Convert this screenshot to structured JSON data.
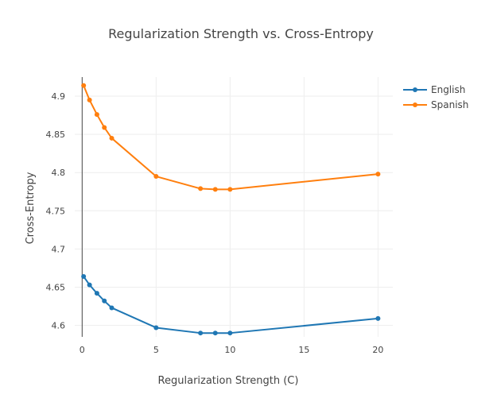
{
  "chart_data": {
    "type": "line",
    "title": "Regularization Strength vs. Cross-Entropy",
    "xlabel": "Regularization Strength (C)",
    "ylabel": "Cross-Entropy",
    "xlim": [
      -0.5,
      21
    ],
    "ylim": [
      4.585,
      4.925
    ],
    "x_ticks": [
      0,
      5,
      10,
      15,
      20
    ],
    "y_ticks": [
      4.6,
      4.65,
      4.7,
      4.75,
      4.8,
      4.85,
      4.9
    ],
    "y_tick_labels": [
      "4.6",
      "4.65",
      "4.7",
      "4.75",
      "4.8",
      "4.85",
      "4.9"
    ],
    "grid": true,
    "legend_position": "top-right",
    "x": [
      0.1,
      0.5,
      1,
      1.5,
      2,
      5,
      8,
      9,
      10,
      20
    ],
    "series": [
      {
        "name": "English",
        "color": "#1f77b4",
        "values": [
          4.664,
          4.653,
          4.642,
          4.632,
          4.623,
          4.597,
          4.59,
          4.59,
          4.59,
          4.609
        ]
      },
      {
        "name": "Spanish",
        "color": "#ff7f0e",
        "values": [
          4.914,
          4.895,
          4.876,
          4.859,
          4.845,
          4.795,
          4.779,
          4.778,
          4.778,
          4.798
        ]
      }
    ]
  }
}
